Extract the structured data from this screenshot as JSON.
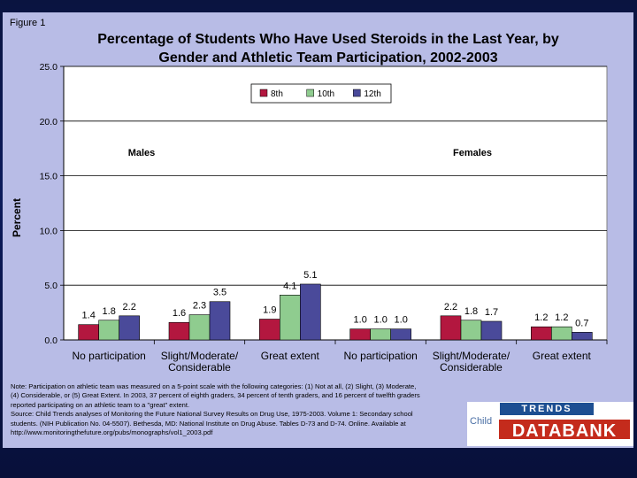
{
  "figure_label": "Figure 1",
  "title_line1": "Percentage of Students Who Have Used Steroids in the Last Year, by",
  "title_line2": "Gender and Athletic Team Participation, 2002-2003",
  "group_labels": {
    "males": "Males",
    "females": "Females"
  },
  "colors": {
    "8th": "#b3173f",
    "10th": "#8fcc8f",
    "12th": "#4a4a9a"
  },
  "chart_data": {
    "type": "bar",
    "ylabel": "Percent",
    "ylim": [
      0,
      25
    ],
    "yticks": [
      "0.0",
      "5.0",
      "10.0",
      "15.0",
      "20.0",
      "25.0"
    ],
    "legend_position": "top-center",
    "categories": [
      [
        "No participation"
      ],
      [
        "Slight/Moderate/",
        "Considerable"
      ],
      [
        "Great extent"
      ],
      [
        "No participation"
      ],
      [
        "Slight/Moderate/",
        "Considerable"
      ],
      [
        "Great extent"
      ]
    ],
    "series": [
      {
        "name": "8th",
        "values": [
          1.4,
          1.6,
          1.9,
          1.0,
          2.2,
          1.2
        ]
      },
      {
        "name": "10th",
        "values": [
          1.8,
          2.3,
          4.1,
          1.0,
          1.8,
          1.2
        ]
      },
      {
        "name": "12th",
        "values": [
          2.2,
          3.5,
          5.1,
          1.0,
          1.7,
          0.7
        ]
      }
    ]
  },
  "notes": [
    "Note: Participation on athletic team was measured on a 5-point scale with the following categories: (1) Not at all, (2) Slight, (3) Moderate,",
    "(4) Considerable, or (5) Great Extent. In 2003, 37 percent of eighth graders, 34 percent of tenth graders, and 16 percent of twelfth graders",
    "reported participating on an athletic team to a \"great\" extent.",
    "Source: Child Trends analyses of Monitoring the Future National Survey Results on Drug Use, 1975-2003. Volume 1: Secondary school",
    "students. (NIH Publication No. 04-5507). Bethesda, MD: National Institute on Drug Abuse. Tables D-73 and D-74. Online. Available at",
    "http://www.monitoringthefuture.org/pubs/monographs/vol1_2003.pdf"
  ],
  "logo": {
    "top": "TRENDS",
    "left": "Child",
    "main": "DATABANK"
  }
}
